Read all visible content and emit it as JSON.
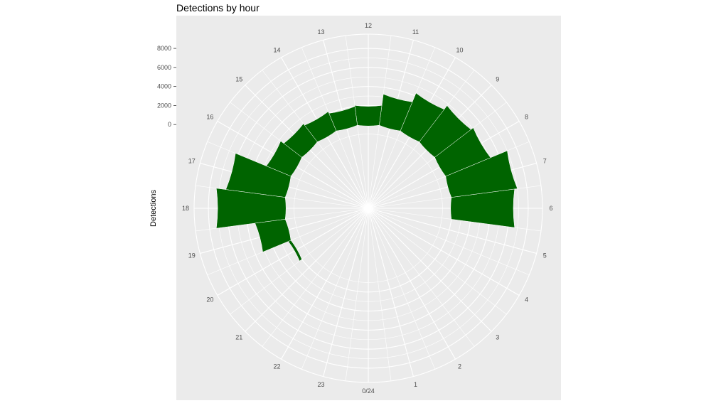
{
  "chart_data": {
    "type": "bar",
    "coord": "polar",
    "title": "Detections by hour",
    "xlabel": "",
    "ylabel": "Detections",
    "x_tick_labels": [
      "0/24",
      "1",
      "2",
      "3",
      "4",
      "5",
      "6",
      "7",
      "8",
      "9",
      "10",
      "11",
      "12",
      "13",
      "14",
      "15",
      "16",
      "17",
      "18",
      "19",
      "20",
      "21",
      "22",
      "23"
    ],
    "y_ticks": [
      0,
      2000,
      4000,
      6000,
      8000
    ],
    "y_tick_labels": [
      "0",
      "2000",
      "4000",
      "6000",
      "8000"
    ],
    "ylim": [
      -8800,
      9500
    ],
    "categories": [
      6,
      7,
      8,
      9,
      10,
      11,
      12,
      13,
      14,
      15,
      16,
      17,
      18,
      19,
      20
    ],
    "values": [
      6700,
      7000,
      5100,
      4800,
      4300,
      3300,
      2100,
      2000,
      2200,
      2400,
      2800,
      6300,
      7300,
      3200,
      300
    ],
    "bar_color": "#006400",
    "panel_color": "#ebebeb",
    "grid_color": "#ffffff",
    "grid": true,
    "legend": "none"
  }
}
